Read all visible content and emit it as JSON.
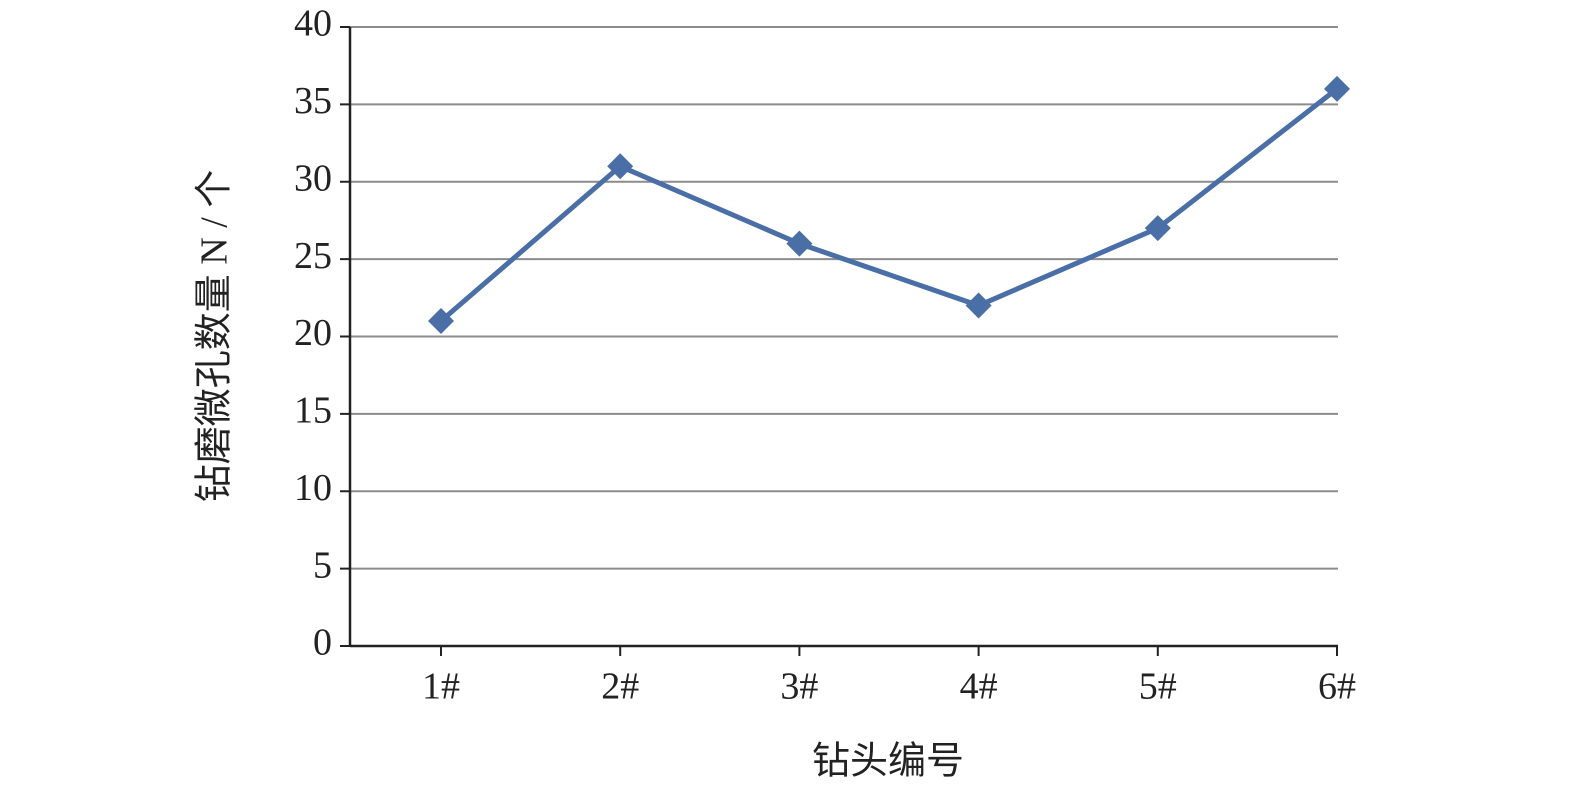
{
  "chart_data": {
    "type": "line",
    "x_label": "钻头编号",
    "y_label": "钻磨微孔数量 N / 个",
    "categories": [
      "1#",
      "2#",
      "3#",
      "4#",
      "5#",
      "6#"
    ],
    "series": [
      {
        "name": "钻磨微孔数量",
        "color": "#4a6ea6",
        "values": [
          21,
          31,
          26,
          22,
          27,
          36
        ]
      }
    ],
    "ylim": [
      0,
      40
    ],
    "yticks": [
      0,
      5,
      10,
      15,
      20,
      25,
      30,
      35,
      40
    ],
    "grid": true
  }
}
